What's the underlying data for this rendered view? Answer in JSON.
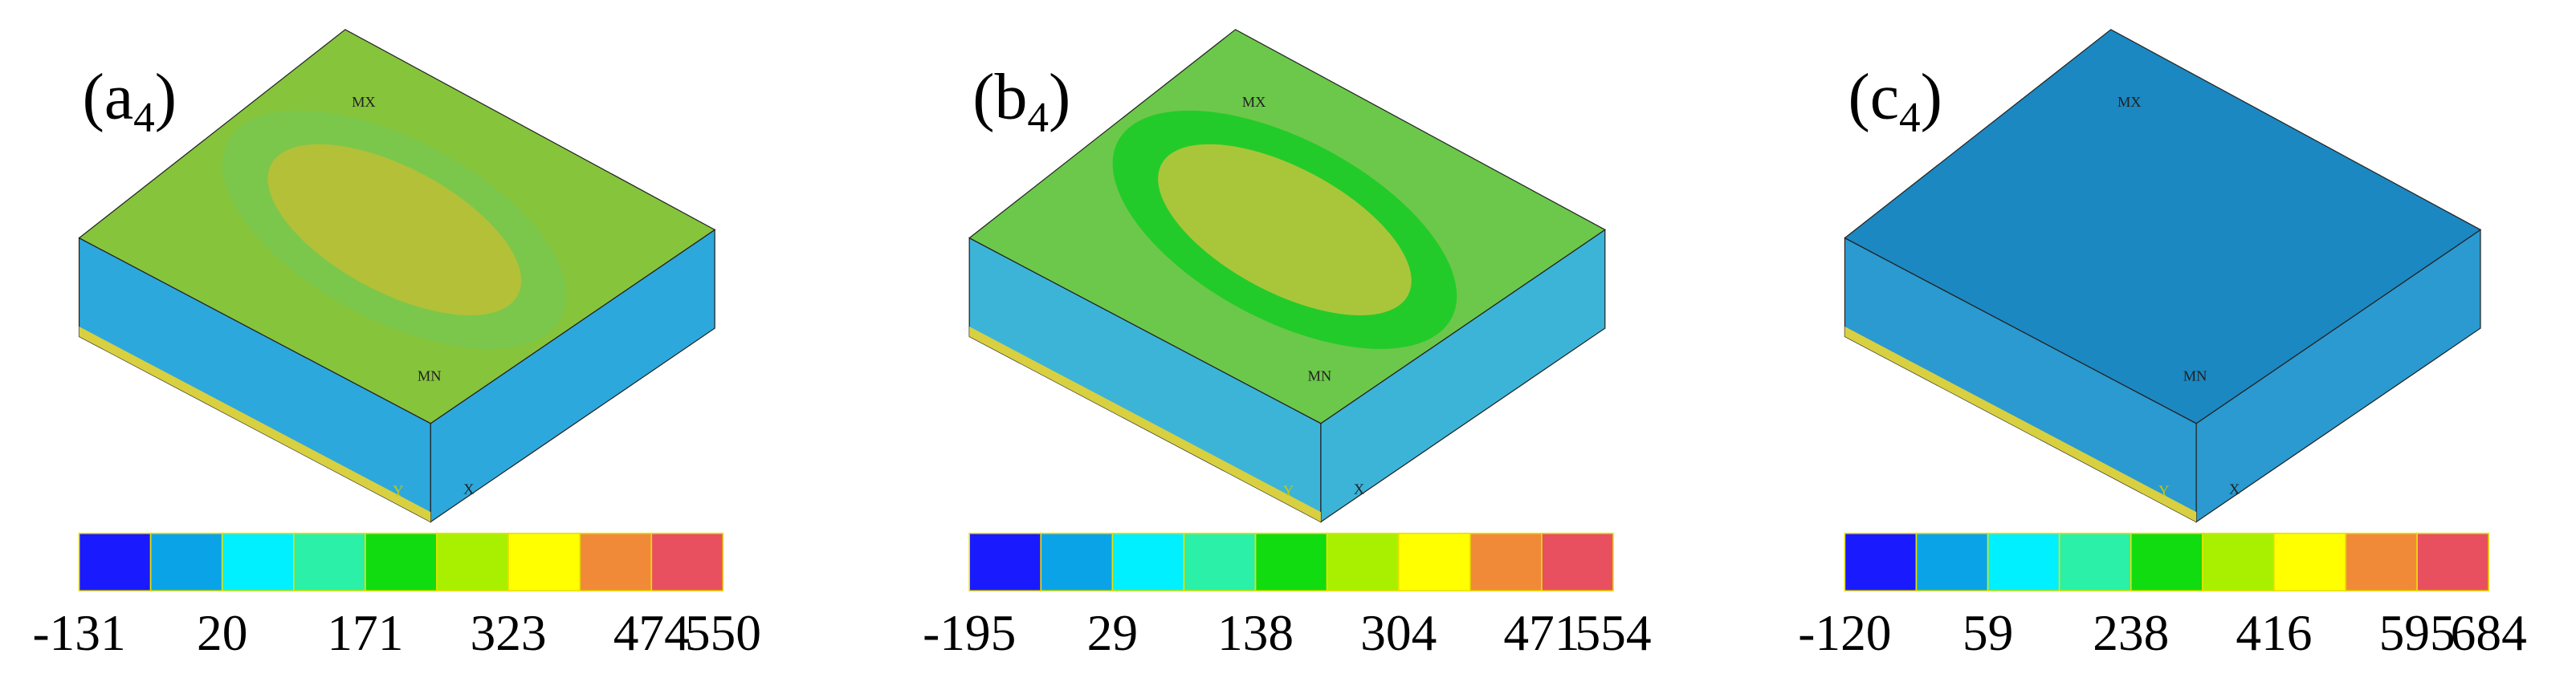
{
  "panels": [
    {
      "label_open": "(a",
      "label_sub": "4",
      "label_close": ")",
      "max_label": "MX",
      "min_label": "MN",
      "axis_y": "Y",
      "axis_x": "X",
      "ticks": [
        -131,
        20,
        171,
        323,
        474,
        550
      ]
    },
    {
      "label_open": "(b",
      "label_sub": "4",
      "label_close": ")",
      "max_label": "MX",
      "min_label": "MN",
      "axis_y": "Y",
      "axis_x": "X",
      "ticks": [
        -195,
        29,
        138,
        304,
        471,
        554
      ]
    },
    {
      "label_open": "(c",
      "label_sub": "4",
      "label_close": ")",
      "max_label": "MX",
      "min_label": "MN",
      "axis_y": "Y",
      "axis_x": "X",
      "ticks": [
        -120,
        59,
        238,
        416,
        595,
        684
      ]
    }
  ]
}
